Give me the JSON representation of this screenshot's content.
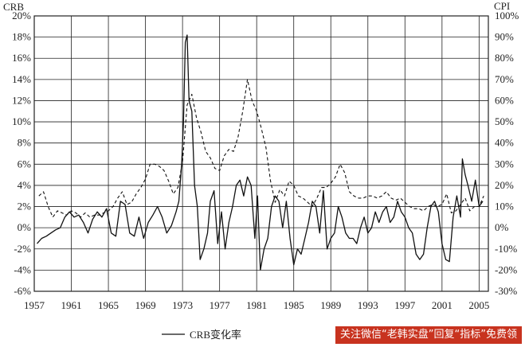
{
  "chart_data": {
    "type": "line",
    "title": "",
    "ylabel_left": "CRB",
    "ylabel_right": "CPI",
    "xlim": [
      1957,
      2006
    ],
    "ylim_left": [
      -6,
      20
    ],
    "ylim_right": [
      -30,
      100
    ],
    "x_ticks": [
      "1957",
      "1961",
      "1965",
      "1969",
      "1973",
      "1977",
      "1981",
      "1985",
      "1989",
      "1993",
      "1997",
      "2001",
      "2005"
    ],
    "y_ticks_left": [
      "20%",
      "18%",
      "16%",
      "14%",
      "12%",
      "10%",
      "8%",
      "6%",
      "4%",
      "2%",
      "0%",
      "-2%",
      "-4%",
      "-6%"
    ],
    "y_ticks_right": [
      "100%",
      "90%",
      "80%",
      "70%",
      "60%",
      "50%",
      "40%",
      "30%",
      "20%",
      "10%",
      "0%",
      "-10%",
      "-20%",
      "-30%"
    ],
    "grid": true,
    "legend": "bottom-center",
    "series": [
      {
        "name": "CRB变化率",
        "axis": "left",
        "style": "solid",
        "x": [
          1957.3,
          1957.8,
          1958.3,
          1958.8,
          1959.3,
          1959.8,
          1960.3,
          1960.8,
          1961.3,
          1961.8,
          1962.3,
          1962.8,
          1963.3,
          1963.8,
          1964.3,
          1964.8,
          1965.3,
          1965.8,
          1966.3,
          1966.8,
          1967.3,
          1967.8,
          1968.3,
          1968.8,
          1969.3,
          1969.8,
          1970.3,
          1970.8,
          1971.3,
          1971.8,
          1972.3,
          1972.6,
          1972.9,
          1973.1,
          1973.3,
          1973.5,
          1973.7,
          1974.0,
          1974.3,
          1974.6,
          1974.9,
          1975.3,
          1975.7,
          1976.0,
          1976.4,
          1976.8,
          1977.2,
          1977.6,
          1978.0,
          1978.4,
          1978.8,
          1979.2,
          1979.6,
          1980.0,
          1980.4,
          1980.8,
          1981.1,
          1981.4,
          1981.8,
          1982.2,
          1982.6,
          1983.0,
          1983.4,
          1983.8,
          1984.2,
          1984.6,
          1985.0,
          1985.4,
          1985.8,
          1986.2,
          1986.6,
          1987.0,
          1987.4,
          1987.8,
          1988.2,
          1988.6,
          1989.0,
          1989.4,
          1989.8,
          1990.2,
          1990.6,
          1991.0,
          1991.4,
          1991.8,
          1992.2,
          1992.6,
          1993.0,
          1993.4,
          1993.8,
          1994.2,
          1994.6,
          1995.0,
          1995.4,
          1995.8,
          1996.2,
          1996.6,
          1997.0,
          1997.4,
          1997.8,
          1998.2,
          1998.6,
          1999.0,
          1999.4,
          1999.8,
          2000.2,
          2000.6,
          2001.0,
          2001.4,
          2001.8,
          2002.2,
          2002.6,
          2003.0,
          2003.2,
          2003.5,
          2003.8,
          2004.2,
          2004.6,
          2005.0,
          2005.4
        ],
        "values": [
          -1.5,
          -1.0,
          -0.8,
          -0.5,
          -0.2,
          0.0,
          1.0,
          1.5,
          1.0,
          1.2,
          0.5,
          -0.5,
          0.8,
          1.5,
          1.0,
          1.8,
          -0.5,
          -0.8,
          2.5,
          2.2,
          -0.5,
          -0.8,
          1.0,
          -1.0,
          0.5,
          1.2,
          2.0,
          1.0,
          -0.5,
          0.2,
          1.5,
          2.5,
          6.0,
          10.0,
          17.5,
          18.2,
          12.0,
          11.0,
          4.0,
          2.0,
          -3.0,
          -2.0,
          -0.5,
          2.5,
          3.5,
          -1.5,
          1.5,
          -2.0,
          0.5,
          2.0,
          4.0,
          4.5,
          3.0,
          4.8,
          4.0,
          -1.0,
          3.0,
          -4.0,
          -2.0,
          -1.0,
          2.0,
          3.0,
          2.5,
          0.0,
          2.5,
          -1.0,
          -3.5,
          -2.0,
          -2.5,
          -1.0,
          0.5,
          2.5,
          2.0,
          -0.5,
          3.5,
          -2.0,
          -1.0,
          -0.5,
          2.0,
          1.0,
          -0.5,
          -1.0,
          -1.0,
          -1.5,
          0.0,
          1.0,
          -0.5,
          0.0,
          1.5,
          0.5,
          1.5,
          2.0,
          0.5,
          1.0,
          2.5,
          1.5,
          1.0,
          0.0,
          -0.5,
          -2.5,
          -3.0,
          -2.5,
          0.0,
          2.0,
          2.5,
          1.5,
          -1.5,
          -3.0,
          -3.2,
          1.0,
          3.0,
          1.0,
          6.5,
          5.0,
          4.0,
          2.5,
          4.5,
          2.0,
          2.5
        ]
      },
      {
        "name": "",
        "axis": "right",
        "style": "dashed",
        "x": [
          1957.5,
          1958.0,
          1958.5,
          1959.0,
          1959.5,
          1960.0,
          1960.5,
          1961.0,
          1961.5,
          1962.0,
          1962.5,
          1963.0,
          1963.5,
          1964.0,
          1964.5,
          1965.0,
          1965.5,
          1966.0,
          1966.5,
          1967.0,
          1967.5,
          1968.0,
          1968.5,
          1969.0,
          1969.5,
          1970.0,
          1970.5,
          1971.0,
          1971.5,
          1972.0,
          1972.5,
          1973.0,
          1973.5,
          1974.0,
          1974.5,
          1975.0,
          1975.5,
          1976.0,
          1976.5,
          1977.0,
          1977.5,
          1978.0,
          1978.5,
          1979.0,
          1979.5,
          1980.0,
          1980.5,
          1981.0,
          1981.5,
          1982.0,
          1982.5,
          1983.0,
          1983.5,
          1984.0,
          1984.5,
          1985.0,
          1985.5,
          1986.0,
          1986.5,
          1987.0,
          1987.5,
          1988.0,
          1988.5,
          1989.0,
          1989.5,
          1990.0,
          1990.5,
          1991.0,
          1991.5,
          1992.0,
          1992.5,
          1993.0,
          1993.5,
          1994.0,
          1994.5,
          1995.0,
          1995.5,
          1996.0,
          1996.5,
          1997.0,
          1997.5,
          1998.0,
          1998.5,
          1999.0,
          1999.5,
          2000.0,
          2000.5,
          2001.0,
          2001.5,
          2002.0,
          2002.5,
          2003.0,
          2003.5,
          2004.0,
          2004.5,
          2005.0,
          2005.5
        ],
        "values": [
          15,
          17,
          10,
          5,
          8,
          7,
          6,
          8,
          7,
          5,
          7,
          5,
          6,
          6,
          7,
          8,
          10,
          14,
          17,
          11,
          12,
          16,
          19,
          23,
          30,
          30,
          29,
          27,
          22,
          16,
          19,
          31,
          58,
          63,
          52,
          45,
          36,
          33,
          28,
          27,
          34,
          37,
          36,
          43,
          55,
          70,
          60,
          55,
          47,
          38,
          22,
          12,
          18,
          15,
          22,
          20,
          15,
          14,
          12,
          10,
          14,
          19,
          19,
          21,
          24,
          30,
          26,
          17,
          15,
          14,
          14,
          15,
          15,
          14,
          15,
          17,
          14,
          13,
          14,
          12,
          10,
          9,
          9,
          8,
          10,
          11,
          10,
          11,
          16,
          7,
          8,
          11,
          14,
          8,
          10,
          10,
          15
        ]
      }
    ]
  },
  "legend": {
    "label": "CRB变化率"
  },
  "watermark": {
    "text": "关注微信“老韩实盘”回复“指标”免费领"
  }
}
